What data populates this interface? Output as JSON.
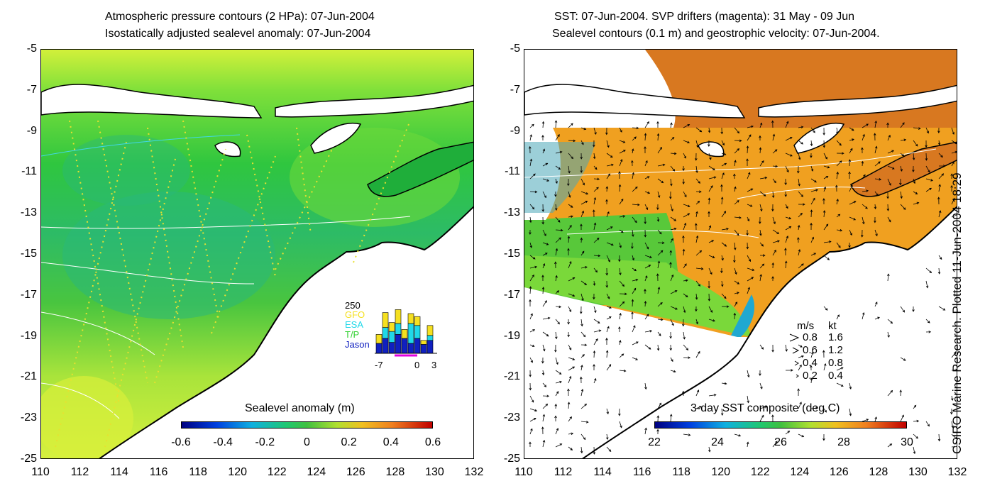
{
  "left": {
    "title_line1": "Atmospheric pressure contours (2 HPa): 07-Jun-2004",
    "title_line2": "Isostatically adjusted sealevel anomaly: 07-Jun-2004",
    "colorbar": {
      "title": "Sealevel anomaly (m)",
      "ticks": [
        "-0.6",
        "-0.4",
        "-0.2",
        "0",
        "0.2",
        "0.4",
        "0.6"
      ]
    },
    "inset": {
      "ymax_label": "250",
      "legend": [
        "GFO",
        "ESA",
        "T/P",
        "Jason"
      ],
      "legend_colors": [
        "#f5e020",
        "#20d8e8",
        "#30d030",
        "#1020c0"
      ],
      "xticks": [
        "-7",
        "0",
        "3"
      ],
      "bars": [
        {
          "jason": 0.2,
          "tp": 0.0,
          "esa": 0.0,
          "gfo": 0.18
        },
        {
          "jason": 0.3,
          "tp": 0.0,
          "esa": 0.22,
          "gfo": 0.3
        },
        {
          "jason": 0.22,
          "tp": 0.0,
          "esa": 0.22,
          "gfo": 0.18
        },
        {
          "jason": 0.38,
          "tp": 0.0,
          "esa": 0.22,
          "gfo": 0.28
        },
        {
          "jason": 0.3,
          "tp": 0.0,
          "esa": 0.0,
          "gfo": 0.18
        },
        {
          "jason": 0.2,
          "tp": 0.0,
          "esa": 0.4,
          "gfo": 0.2
        },
        {
          "jason": 0.3,
          "tp": 0.0,
          "esa": 0.26,
          "gfo": 0.18
        },
        {
          "jason": 0.18,
          "tp": 0.0,
          "esa": 0.0,
          "gfo": 0.08
        },
        {
          "jason": 0.26,
          "tp": 0.0,
          "esa": 0.1,
          "gfo": 0.2
        }
      ]
    }
  },
  "right": {
    "title_line1": "SST: 07-Jun-2004. SVP drifters (magenta): 31 May - 09 Jun",
    "title_line2": "Sealevel contours (0.1 m) and geostrophic velocity: 07-Jun-2004.",
    "colorbar": {
      "title": "3-day SST composite (deg C)",
      "ticks": [
        "22",
        "24",
        "26",
        "28",
        "30"
      ]
    },
    "velocity_legend": {
      "header_ms": "m/s",
      "header_kt": "kt",
      "rows": [
        {
          "ms": "0.8",
          "kt": "1.6"
        },
        {
          "ms": "0.6",
          "kt": "1.2"
        },
        {
          "ms": "0.4",
          "kt": "0.8"
        },
        {
          "ms": "0.2",
          "kt": "0.4"
        }
      ]
    }
  },
  "axes": {
    "lat_ticks": [
      "-5",
      "-7",
      "-9",
      "-11",
      "-13",
      "-15",
      "-17",
      "-19",
      "-21",
      "-23",
      "-25"
    ],
    "lon_ticks": [
      "110",
      "112",
      "114",
      "116",
      "118",
      "120",
      "122",
      "124",
      "126",
      "128",
      "130",
      "132"
    ]
  },
  "credit": "CSIRO Marine Research. Plotted 11-Jun-2004 18:29",
  "colors": {
    "land": "#ffffff",
    "coast": "#000000",
    "sla_ramp": [
      "#000080",
      "#0060ff",
      "#20d0c0",
      "#30c040",
      "#d0f030",
      "#f0a020",
      "#c00000"
    ],
    "sst_ramp": [
      "#000080",
      "#0060ff",
      "#20d0c0",
      "#30c040",
      "#d0f030",
      "#f0a020",
      "#c00000"
    ]
  }
}
